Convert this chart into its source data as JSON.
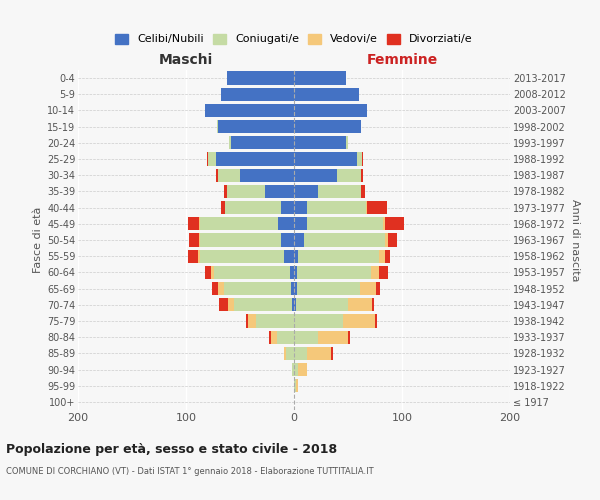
{
  "age_groups": [
    "100+",
    "95-99",
    "90-94",
    "85-89",
    "80-84",
    "75-79",
    "70-74",
    "65-69",
    "60-64",
    "55-59",
    "50-54",
    "45-49",
    "40-44",
    "35-39",
    "30-34",
    "25-29",
    "20-24",
    "15-19",
    "10-14",
    "5-9",
    "0-4"
  ],
  "birth_years": [
    "≤ 1917",
    "1918-1922",
    "1923-1927",
    "1928-1932",
    "1933-1937",
    "1938-1942",
    "1943-1947",
    "1948-1952",
    "1953-1957",
    "1958-1962",
    "1963-1967",
    "1968-1972",
    "1973-1977",
    "1978-1982",
    "1983-1987",
    "1988-1992",
    "1993-1997",
    "1998-2002",
    "2003-2007",
    "2008-2012",
    "2013-2017"
  ],
  "males": {
    "celibi": [
      0,
      0,
      0,
      0,
      0,
      0,
      2,
      3,
      4,
      9,
      12,
      15,
      12,
      27,
      50,
      72,
      58,
      70,
      82,
      68,
      62
    ],
    "coniugati": [
      0,
      0,
      2,
      7,
      16,
      35,
      54,
      62,
      70,
      78,
      75,
      72,
      52,
      35,
      20,
      8,
      2,
      1,
      0,
      0,
      0
    ],
    "vedovi": [
      0,
      0,
      0,
      2,
      5,
      8,
      5,
      5,
      3,
      2,
      1,
      1,
      0,
      0,
      0,
      0,
      0,
      0,
      0,
      0,
      0
    ],
    "divorziati": [
      0,
      0,
      0,
      0,
      2,
      1,
      8,
      6,
      5,
      9,
      9,
      10,
      4,
      3,
      2,
      1,
      0,
      0,
      0,
      0,
      0
    ]
  },
  "females": {
    "nubili": [
      0,
      0,
      0,
      0,
      0,
      0,
      2,
      3,
      3,
      4,
      9,
      12,
      12,
      22,
      40,
      58,
      48,
      62,
      68,
      60,
      48
    ],
    "coniugate": [
      0,
      2,
      4,
      12,
      22,
      45,
      48,
      58,
      68,
      75,
      75,
      70,
      55,
      40,
      22,
      5,
      2,
      0,
      0,
      0,
      0
    ],
    "vedove": [
      0,
      2,
      8,
      22,
      28,
      30,
      22,
      15,
      8,
      5,
      3,
      2,
      1,
      0,
      0,
      0,
      0,
      0,
      0,
      0,
      0
    ],
    "divorziate": [
      0,
      0,
      0,
      2,
      2,
      2,
      2,
      4,
      8,
      5,
      8,
      18,
      18,
      4,
      2,
      1,
      0,
      0,
      0,
      0,
      0
    ]
  },
  "colors": {
    "celibi": "#4472c4",
    "coniugati": "#c5dba4",
    "vedovi": "#f5c87a",
    "divorziati": "#e03020"
  },
  "legend_labels": [
    "Celibi/Nubili",
    "Coniugati/e",
    "Vedovi/e",
    "Divorziati/e"
  ],
  "title": "Popolazione per età, sesso e stato civile - 2018",
  "subtitle": "COMUNE DI CORCHIANO (VT) - Dati ISTAT 1° gennaio 2018 - Elaborazione TUTTITALIA.IT",
  "xlabel_left": "Maschi",
  "xlabel_right": "Femmine",
  "ylabel_left": "Fasce di età",
  "ylabel_right": "Anni di nascita",
  "xlim": 200,
  "background_color": "#f7f7f7"
}
